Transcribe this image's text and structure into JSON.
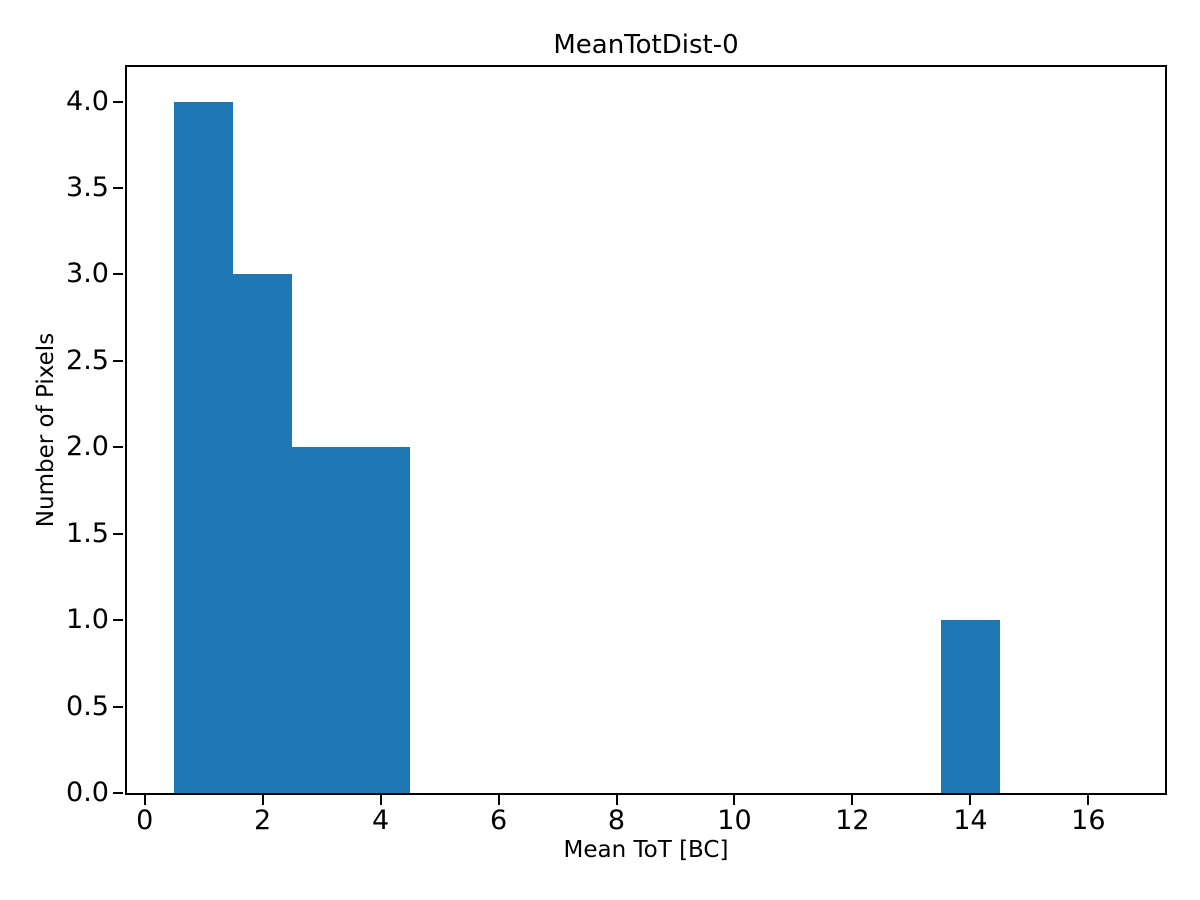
{
  "chart_data": {
    "type": "bar",
    "subtype": "histogram",
    "title": "MeanTotDist-0",
    "xlabel": "Mean ToT [BC]",
    "ylabel": "Number of Pixels",
    "bar_color": "#1f77b4",
    "axis_color": "#000000",
    "background_color": "#ffffff",
    "grid": false,
    "legend": null,
    "xlim": [
      -0.3,
      17.3
    ],
    "ylim": [
      0,
      4.2
    ],
    "xticks": [
      {
        "value": 0,
        "label": "0"
      },
      {
        "value": 2,
        "label": "2"
      },
      {
        "value": 4,
        "label": "4"
      },
      {
        "value": 6,
        "label": "6"
      },
      {
        "value": 8,
        "label": "8"
      },
      {
        "value": 10,
        "label": "10"
      },
      {
        "value": 12,
        "label": "12"
      },
      {
        "value": 14,
        "label": "14"
      },
      {
        "value": 16,
        "label": "16"
      }
    ],
    "yticks": [
      {
        "value": 0.0,
        "label": "0.0"
      },
      {
        "value": 0.5,
        "label": "0.5"
      },
      {
        "value": 1.0,
        "label": "1.0"
      },
      {
        "value": 1.5,
        "label": "1.5"
      },
      {
        "value": 2.0,
        "label": "2.0"
      },
      {
        "value": 2.5,
        "label": "2.5"
      },
      {
        "value": 3.0,
        "label": "3.0"
      },
      {
        "value": 3.5,
        "label": "3.5"
      },
      {
        "value": 4.0,
        "label": "4.0"
      }
    ],
    "bars": [
      {
        "x_start": 0.5,
        "x_end": 1.5,
        "count": 4
      },
      {
        "x_start": 1.5,
        "x_end": 2.5,
        "count": 3
      },
      {
        "x_start": 2.5,
        "x_end": 3.5,
        "count": 2
      },
      {
        "x_start": 3.5,
        "x_end": 4.5,
        "count": 2
      },
      {
        "x_start": 13.5,
        "x_end": 14.5,
        "count": 1
      }
    ]
  }
}
